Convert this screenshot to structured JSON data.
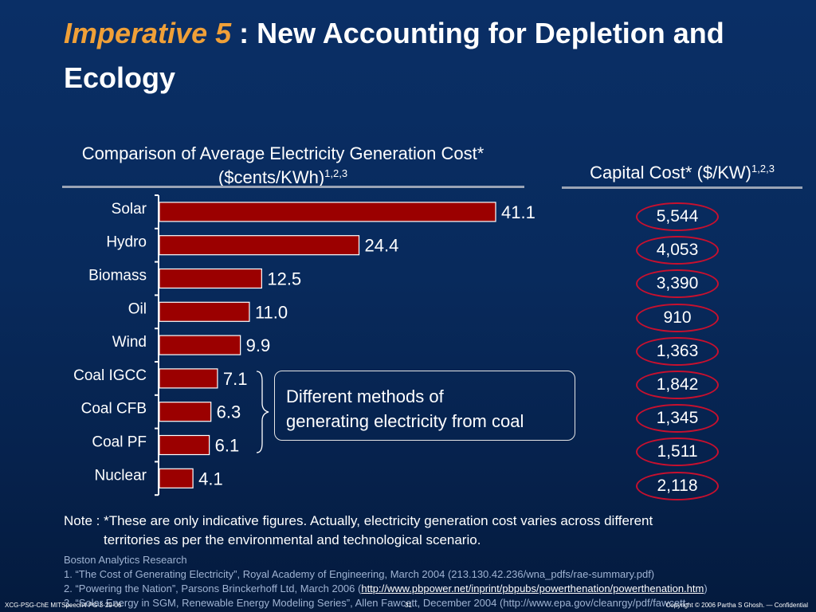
{
  "slide": {
    "title_highlight": "Imperative 5",
    "title_rest": " : New Accounting for Depletion and Ecology"
  },
  "chart_data": {
    "type": "bar",
    "orientation": "horizontal",
    "title": "Comparison of Average Electricity Generation Cost* ($cents/KWh)",
    "title_line1": "Comparison of Average Electricity Generation Cost*",
    "title_line2": "($cents/KWh)",
    "title_sup": "1,2,3",
    "categories": [
      "Solar",
      "Hydro",
      "Biomass",
      "Oil",
      "Wind",
      "Coal IGCC",
      "Coal CFB",
      "Coal PF",
      "Nuclear"
    ],
    "values": [
      41.1,
      24.4,
      12.5,
      11.0,
      9.9,
      7.1,
      6.3,
      6.1,
      4.1
    ],
    "value_labels": [
      "41.1",
      "24.4",
      "12.5",
      "11.0",
      "9.9",
      "7.1",
      "6.3",
      "6.1",
      "4.1"
    ],
    "xlim": [
      0,
      41.1
    ],
    "grid": false,
    "bar_color": "#9b0000",
    "bar_border": "#ffffff"
  },
  "capital_cost": {
    "title": "Capital Cost* ($/KW)",
    "title_sup": "1,2,3",
    "values": [
      "5,544",
      "4,053",
      "3,390",
      "910",
      "1,363",
      "1,842",
      "1,345",
      "1,511",
      "2,118"
    ],
    "ring_color": "#c8102e"
  },
  "callout": {
    "line1": "Different methods of",
    "line2": "generating electricity from coal"
  },
  "note": {
    "line1": "Note : *These are only indicative figures. Actually, electricity generation cost varies across different",
    "line2": "territories as per the environmental and technological scenario."
  },
  "references": {
    "source": "Boston Analytics Research",
    "ref1": "1. “The Cost of Generating Electricity”, Royal Academy of Engineering, March 2004 (213.130.42.236/wna_pdfs/rae-summary.pdf)",
    "ref2_prefix": "2. “Powering the Nation”, Parsons Brinckerhoff Ltd, March 2006 (",
    "ref2_link": "http://www.pbpower.net/inprint/pbpubs/powerthenation/powerthenation.htm",
    "ref2_suffix": ")",
    "ref3": "3. “Solar Energy in SGM, Renewable Energy Modeling Series”, Allen Fawcett, December 2004 (http://www.epa.gov/cleanrgy/pdf/fawcett-"
  },
  "footer": {
    "left": "XCG-PSG-ChE MITSpeech4 PG 3-29-06",
    "page": "31",
    "copyright": "Copyright © 2006 Partha S Ghosh. — Confidential"
  }
}
